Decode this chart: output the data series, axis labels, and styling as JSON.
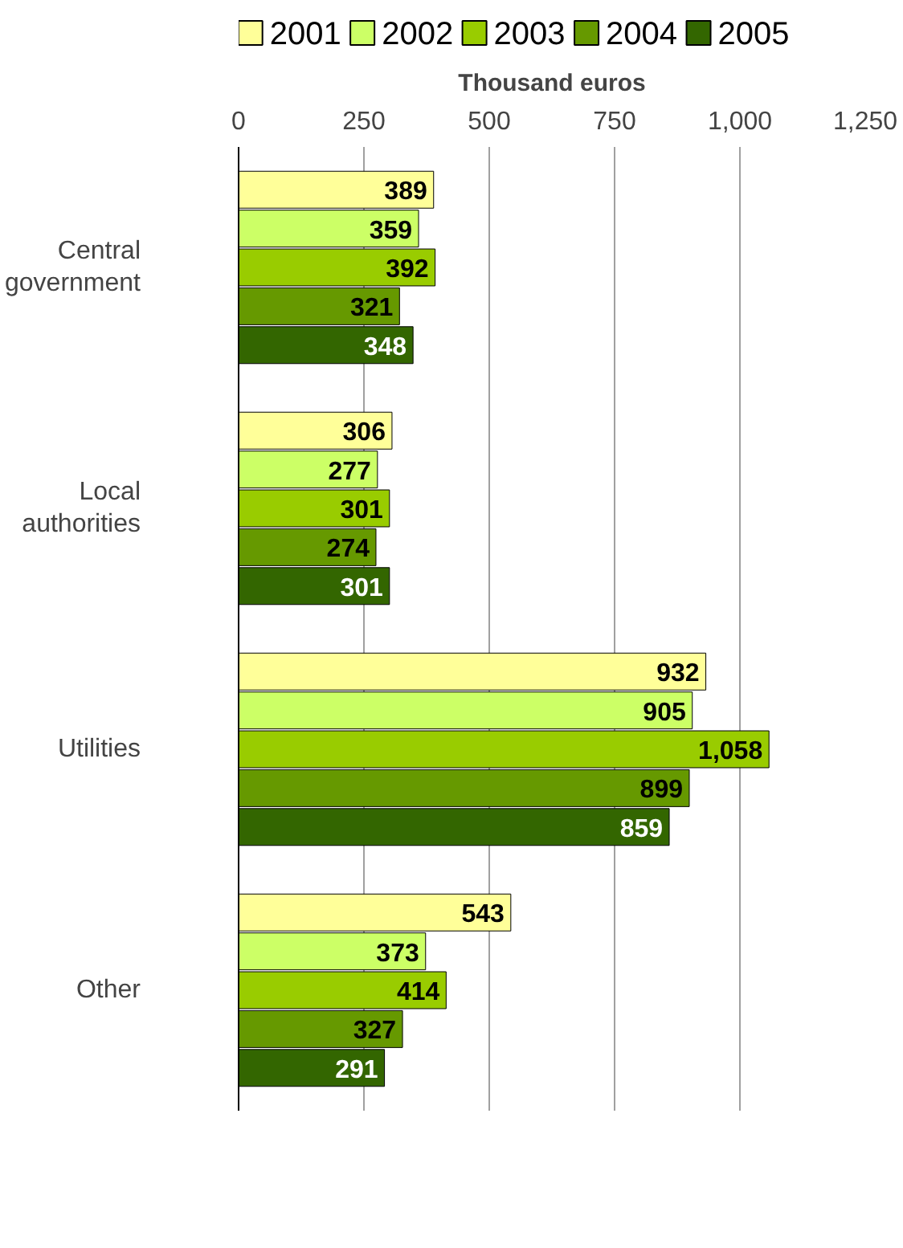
{
  "chart_data": {
    "type": "bar",
    "orientation": "horizontal",
    "xlabel": "Thousand euros",
    "categories": [
      "Central government",
      "Local authorities",
      "Utilities",
      "Other"
    ],
    "series": [
      {
        "name": "2001",
        "color": "#ffff99",
        "values": [
          389,
          306,
          932,
          543
        ],
        "value_labels": [
          "389",
          "306",
          "932",
          "543"
        ]
      },
      {
        "name": "2002",
        "color": "#ccff66",
        "values": [
          359,
          277,
          905,
          373
        ],
        "value_labels": [
          "359",
          "277",
          "905",
          "373"
        ]
      },
      {
        "name": "2003",
        "color": "#99cc00",
        "values": [
          392,
          301,
          1058,
          414
        ],
        "value_labels": [
          "392",
          "301",
          "1,058",
          "414"
        ]
      },
      {
        "name": "2004",
        "color": "#669900",
        "values": [
          321,
          274,
          899,
          327
        ],
        "value_labels": [
          "321",
          "274",
          "899",
          "327"
        ]
      },
      {
        "name": "2005",
        "color": "#336600",
        "values": [
          348,
          301,
          859,
          291
        ],
        "value_labels": [
          "348",
          "301",
          "859",
          "291"
        ]
      }
    ],
    "xlim": [
      0,
      1250
    ],
    "xticks": [
      0,
      250,
      500,
      750,
      {
        "value": 1000,
        "label": "1,000"
      },
      {
        "value": 1250,
        "label": "1,250"
      }
    ],
    "grid": "x",
    "legend": "top"
  }
}
